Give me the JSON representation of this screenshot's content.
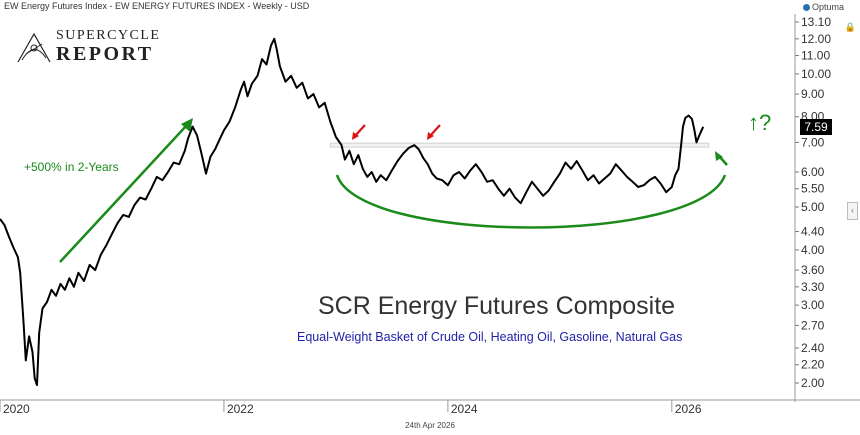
{
  "header": {
    "title": "EW Energy Futures Index - EW ENERGY FUTURES INDEX - Weekly - USD"
  },
  "brand": {
    "name": "Optuma"
  },
  "footer_date": "24th Apr 2026",
  "logo": {
    "line1": "SUPERCYCLE",
    "line2": "REPORT"
  },
  "annotations": {
    "growth": "+500% in 2-Years",
    "breakout_question": "↑?"
  },
  "chart_data": {
    "type": "line",
    "title": "SCR Energy Futures Composite",
    "subtitle": "Equal-Weight Basket of Crude Oil, Heating Oil, Gasoline, Natural Gas",
    "y_scale": "log",
    "ylim": [
      1.85,
      13.1
    ],
    "xlim": [
      2020.0,
      2027.1
    ],
    "x_ticks": [
      {
        "value": 2020,
        "label": "2020"
      },
      {
        "value": 2022,
        "label": "2022"
      },
      {
        "value": 2024,
        "label": "2024"
      },
      {
        "value": 2026,
        "label": "2026"
      }
    ],
    "y_ticks": [
      {
        "value": 13.1,
        "label": "13.10"
      },
      {
        "value": 12.0,
        "label": "12.00"
      },
      {
        "value": 11.0,
        "label": "11.00"
      },
      {
        "value": 10.0,
        "label": "10.00"
      },
      {
        "value": 9.0,
        "label": "9.00"
      },
      {
        "value": 8.0,
        "label": "8.00"
      },
      {
        "value": 7.0,
        "label": "7.00"
      },
      {
        "value": 6.0,
        "label": "6.00"
      },
      {
        "value": 5.5,
        "label": "5.50"
      },
      {
        "value": 5.0,
        "label": "5.00"
      },
      {
        "value": 4.4,
        "label": "4.40"
      },
      {
        "value": 4.0,
        "label": "4.00"
      },
      {
        "value": 3.6,
        "label": "3.60"
      },
      {
        "value": 3.3,
        "label": "3.30"
      },
      {
        "value": 3.0,
        "label": "3.00"
      },
      {
        "value": 2.7,
        "label": "2.70"
      },
      {
        "value": 2.4,
        "label": "2.40"
      },
      {
        "value": 2.2,
        "label": "2.20"
      },
      {
        "value": 2.0,
        "label": "2.00"
      }
    ],
    "last_value": "7.59",
    "resistance_level": 6.9,
    "series": [
      {
        "color": "#000000",
        "points": [
          [
            2020.0,
            4.7
          ],
          [
            2020.04,
            4.55
          ],
          [
            2020.08,
            4.28
          ],
          [
            2020.12,
            4.05
          ],
          [
            2020.16,
            3.85
          ],
          [
            2020.18,
            3.55
          ],
          [
            2020.21,
            2.75
          ],
          [
            2020.23,
            2.25
          ],
          [
            2020.26,
            2.55
          ],
          [
            2020.29,
            2.35
          ],
          [
            2020.31,
            2.05
          ],
          [
            2020.33,
            1.98
          ],
          [
            2020.35,
            2.6
          ],
          [
            2020.38,
            2.95
          ],
          [
            2020.42,
            3.05
          ],
          [
            2020.46,
            3.25
          ],
          [
            2020.5,
            3.15
          ],
          [
            2020.54,
            3.35
          ],
          [
            2020.58,
            3.25
          ],
          [
            2020.62,
            3.45
          ],
          [
            2020.66,
            3.3
          ],
          [
            2020.7,
            3.55
          ],
          [
            2020.75,
            3.4
          ],
          [
            2020.8,
            3.7
          ],
          [
            2020.85,
            3.6
          ],
          [
            2020.9,
            3.9
          ],
          [
            2020.95,
            4.1
          ],
          [
            2021.0,
            4.35
          ],
          [
            2021.05,
            4.6
          ],
          [
            2021.1,
            4.8
          ],
          [
            2021.15,
            4.75
          ],
          [
            2021.2,
            5.05
          ],
          [
            2021.25,
            5.25
          ],
          [
            2021.3,
            5.2
          ],
          [
            2021.35,
            5.5
          ],
          [
            2021.4,
            5.85
          ],
          [
            2021.45,
            5.75
          ],
          [
            2021.5,
            6.0
          ],
          [
            2021.55,
            6.3
          ],
          [
            2021.6,
            6.25
          ],
          [
            2021.65,
            6.7
          ],
          [
            2021.68,
            7.15
          ],
          [
            2021.72,
            7.6
          ],
          [
            2021.76,
            7.25
          ],
          [
            2021.8,
            6.6
          ],
          [
            2021.84,
            5.95
          ],
          [
            2021.88,
            6.5
          ],
          [
            2021.92,
            6.75
          ],
          [
            2021.96,
            7.1
          ],
          [
            2022.0,
            7.45
          ],
          [
            2022.05,
            7.8
          ],
          [
            2022.1,
            8.4
          ],
          [
            2022.15,
            9.2
          ],
          [
            2022.18,
            9.6
          ],
          [
            2022.21,
            8.9
          ],
          [
            2022.25,
            9.5
          ],
          [
            2022.3,
            9.9
          ],
          [
            2022.34,
            10.8
          ],
          [
            2022.38,
            10.5
          ],
          [
            2022.42,
            11.6
          ],
          [
            2022.45,
            12.0
          ],
          [
            2022.47,
            11.4
          ],
          [
            2022.5,
            10.4
          ],
          [
            2022.55,
            9.6
          ],
          [
            2022.6,
            9.9
          ],
          [
            2022.65,
            9.3
          ],
          [
            2022.7,
            9.55
          ],
          [
            2022.75,
            8.8
          ],
          [
            2022.8,
            9.0
          ],
          [
            2022.85,
            8.4
          ],
          [
            2022.9,
            8.6
          ],
          [
            2022.95,
            7.8
          ],
          [
            2023.0,
            7.2
          ],
          [
            2023.05,
            6.9
          ],
          [
            2023.08,
            6.4
          ],
          [
            2023.12,
            6.7
          ],
          [
            2023.16,
            6.25
          ],
          [
            2023.2,
            6.55
          ],
          [
            2023.24,
            6.1
          ],
          [
            2023.28,
            5.85
          ],
          [
            2023.32,
            6.0
          ],
          [
            2023.36,
            5.7
          ],
          [
            2023.4,
            5.9
          ],
          [
            2023.45,
            5.75
          ],
          [
            2023.5,
            6.05
          ],
          [
            2023.55,
            6.35
          ],
          [
            2023.6,
            6.6
          ],
          [
            2023.65,
            6.8
          ],
          [
            2023.7,
            6.9
          ],
          [
            2023.74,
            6.75
          ],
          [
            2023.78,
            6.45
          ],
          [
            2023.82,
            6.25
          ],
          [
            2023.86,
            5.95
          ],
          [
            2023.9,
            5.8
          ],
          [
            2023.95,
            5.75
          ],
          [
            2024.0,
            5.6
          ],
          [
            2024.05,
            5.9
          ],
          [
            2024.1,
            6.0
          ],
          [
            2024.15,
            5.8
          ],
          [
            2024.2,
            6.05
          ],
          [
            2024.25,
            6.25
          ],
          [
            2024.3,
            6.0
          ],
          [
            2024.35,
            5.7
          ],
          [
            2024.4,
            5.75
          ],
          [
            2024.45,
            5.5
          ],
          [
            2024.5,
            5.3
          ],
          [
            2024.55,
            5.5
          ],
          [
            2024.6,
            5.25
          ],
          [
            2024.65,
            5.1
          ],
          [
            2024.7,
            5.4
          ],
          [
            2024.75,
            5.7
          ],
          [
            2024.8,
            5.5
          ],
          [
            2024.85,
            5.3
          ],
          [
            2024.9,
            5.45
          ],
          [
            2024.95,
            5.7
          ],
          [
            2025.0,
            5.95
          ],
          [
            2025.05,
            6.3
          ],
          [
            2025.1,
            6.1
          ],
          [
            2025.15,
            6.35
          ],
          [
            2025.2,
            6.05
          ],
          [
            2025.25,
            5.75
          ],
          [
            2025.3,
            5.9
          ],
          [
            2025.35,
            5.65
          ],
          [
            2025.4,
            5.8
          ],
          [
            2025.45,
            5.95
          ],
          [
            2025.5,
            6.25
          ],
          [
            2025.55,
            6.05
          ],
          [
            2025.6,
            5.85
          ],
          [
            2025.65,
            5.7
          ],
          [
            2025.7,
            5.55
          ],
          [
            2025.75,
            5.6
          ],
          [
            2025.8,
            5.75
          ],
          [
            2025.85,
            5.85
          ],
          [
            2025.9,
            5.65
          ],
          [
            2025.95,
            5.4
          ],
          [
            2026.0,
            5.55
          ],
          [
            2026.03,
            5.9
          ],
          [
            2026.06,
            6.1
          ],
          [
            2026.08,
            6.8
          ],
          [
            2026.1,
            7.6
          ],
          [
            2026.12,
            7.95
          ],
          [
            2026.15,
            8.05
          ],
          [
            2026.18,
            7.9
          ],
          [
            2026.2,
            7.5
          ],
          [
            2026.22,
            7.0
          ],
          [
            2026.25,
            7.3
          ],
          [
            2026.28,
            7.59
          ]
        ]
      }
    ]
  }
}
